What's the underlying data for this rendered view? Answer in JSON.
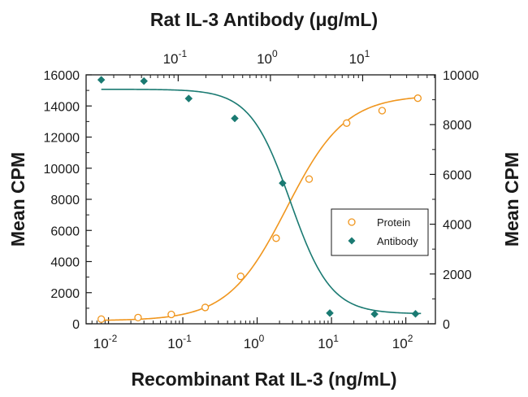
{
  "chart_data": {
    "type": "scatter",
    "title": "Rat IL-3 Antibody (μg/mL)",
    "xlabel": "Recombinant Rat IL-3 (ng/mL)",
    "ylabel_left": "Mean CPM",
    "ylabel_right": "Mean CPM",
    "x_scale": "log",
    "xlim": [
      0.005,
      250
    ],
    "ylim_left": [
      0,
      16000
    ],
    "ylim_right": [
      0,
      10000
    ],
    "x_ticks": [
      {
        "value": 0.01,
        "base": "10",
        "exp": "-2"
      },
      {
        "value": 0.1,
        "base": "10",
        "exp": "-1"
      },
      {
        "value": 1,
        "base": "10",
        "exp": "0"
      },
      {
        "value": 10,
        "base": "10",
        "exp": "1"
      },
      {
        "value": 100,
        "base": "10",
        "exp": "2"
      }
    ],
    "top_x_ticks": [
      {
        "value": 0.1,
        "base": "10",
        "exp": "-1"
      },
      {
        "value": 1,
        "base": "10",
        "exp": "0"
      },
      {
        "value": 10,
        "base": "10",
        "exp": "1"
      }
    ],
    "y_ticks_left": [
      "0",
      "2000",
      "4000",
      "6000",
      "8000",
      "10000",
      "12000",
      "14000",
      "16000"
    ],
    "y_ticks_right": [
      "0",
      "2000",
      "4000",
      "6000",
      "8000",
      "10000"
    ],
    "legend": {
      "position": "center-right",
      "entries": [
        "Protein",
        "Antibody"
      ]
    },
    "colors": {
      "protein": "#f0961e",
      "antibody": "#1a7a72",
      "axis": "#1a1a1a"
    },
    "series": [
      {
        "name": "Protein",
        "axis": "left",
        "marker": "open-circle",
        "x": [
          0.008,
          0.025,
          0.07,
          0.2,
          0.6,
          1.8,
          5,
          16,
          48,
          145
        ],
        "y": [
          300,
          400,
          600,
          1050,
          3050,
          5500,
          9300,
          12900,
          13700,
          14500
        ]
      },
      {
        "name": "Antibody",
        "axis": "right",
        "marker": "filled-diamond",
        "x": [
          0.008,
          0.03,
          0.12,
          0.5,
          2.2,
          9.5,
          38,
          135
        ],
        "y": [
          9800,
          9750,
          9050,
          8250,
          5650,
          430,
          390,
          400
        ]
      }
    ],
    "fits": [
      {
        "series": "Protein",
        "axis": "left",
        "bottom": 200,
        "top": 14700,
        "ec50": 2.5,
        "hill": 1.1
      },
      {
        "series": "Antibody",
        "axis": "right",
        "bottom": 400,
        "top": 9420,
        "ec50": 2.8,
        "hill": -1.6
      }
    ]
  }
}
